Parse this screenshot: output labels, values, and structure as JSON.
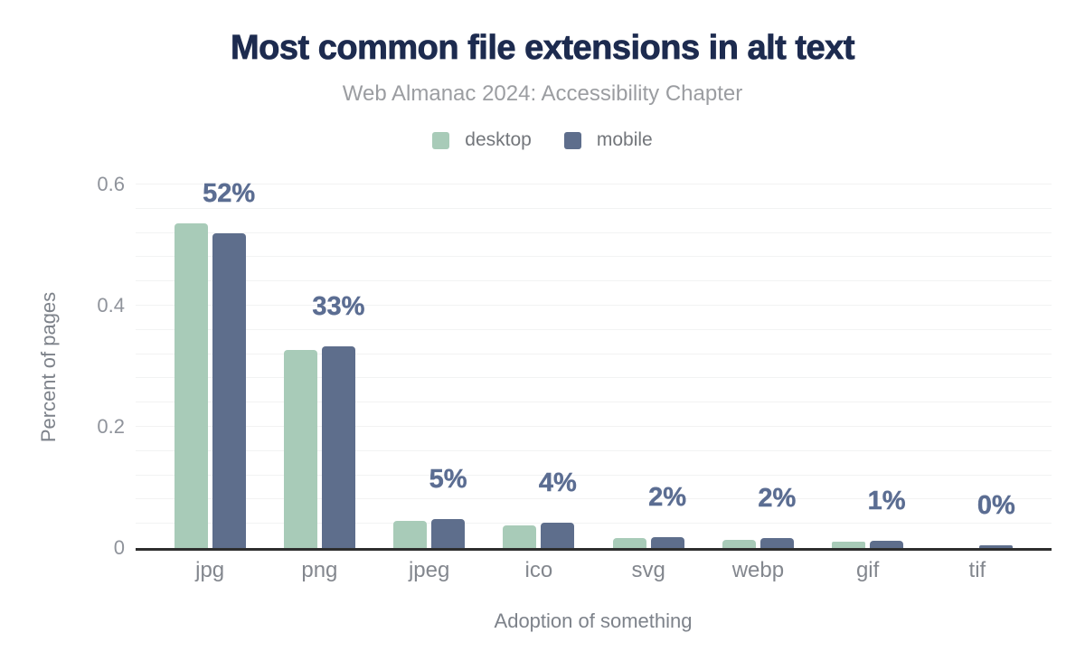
{
  "title": "Most common file extensions in alt text",
  "subtitle": "Web Almanac 2024: Accessibility Chapter",
  "colors": {
    "title": "#1d2b4f",
    "subtitle": "#9b9da1",
    "legend_text": "#73767b",
    "data_label": "#5b6d92",
    "axis_tick": "#8f939b",
    "x_tick": "#83878e",
    "axis_title": "#7d828a",
    "gridline": "#f2f3f3",
    "baseline": "#2e2e2e",
    "desktop": "#a8cbb8",
    "mobile": "#5e6e8c"
  },
  "chart_data": {
    "type": "bar",
    "title": "Most common file extensions in alt text",
    "subtitle": "Web Almanac 2024: Accessibility Chapter",
    "categories": [
      "jpg",
      "png",
      "jpeg",
      "ico",
      "svg",
      "webp",
      "gif",
      "tif"
    ],
    "series": [
      {
        "name": "desktop",
        "color": "#a8cbb8",
        "values": [
          0.536,
          0.327,
          0.045,
          0.038,
          0.017,
          0.013,
          0.011,
          0.0
        ]
      },
      {
        "name": "mobile",
        "color": "#5e6e8c",
        "values": [
          0.52,
          0.333,
          0.048,
          0.042,
          0.018,
          0.017,
          0.012,
          0.004
        ]
      }
    ],
    "data_labels": [
      "52%",
      "33%",
      "5%",
      "4%",
      "2%",
      "2%",
      "1%",
      "0%"
    ],
    "data_label_series": "mobile",
    "xlabel": "Adoption of something",
    "ylabel": "Percent of pages",
    "ylim": [
      0,
      0.6
    ],
    "yticks": [
      {
        "value": 0,
        "label": "0"
      },
      {
        "value": 0.2,
        "label": "0.2"
      },
      {
        "value": 0.4,
        "label": "0.4"
      },
      {
        "value": 0.6,
        "label": "0.6"
      }
    ],
    "grid_step": 0.04,
    "grid": true,
    "legend_position": "top"
  }
}
